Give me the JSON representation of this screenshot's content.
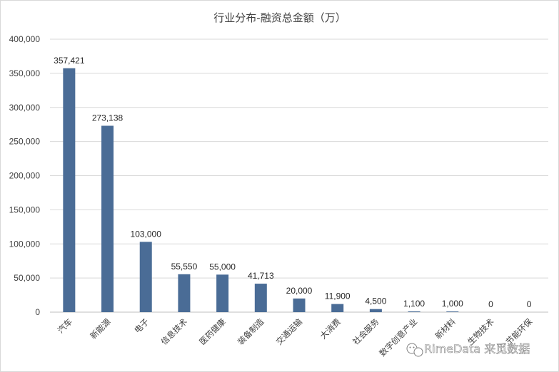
{
  "chart_data": {
    "type": "bar",
    "title": "行业分布-融资总金额（万）",
    "xlabel": "",
    "ylabel": "",
    "ylim": [
      0,
      400000
    ],
    "yticks": [
      0,
      50000,
      100000,
      150000,
      200000,
      250000,
      300000,
      350000,
      400000
    ],
    "ytick_labels": [
      "0",
      "50,000",
      "100,000",
      "150,000",
      "200,000",
      "250,000",
      "300,000",
      "350,000",
      "400,000"
    ],
    "grid": true,
    "legend": "none",
    "categories": [
      "汽车",
      "新能源",
      "电子",
      "信息技术",
      "医药健康",
      "装备制造",
      "交通运输",
      "大消费",
      "社会服务",
      "数字创意产业",
      "新材料",
      "生物技术",
      "节能环保"
    ],
    "values": [
      357421,
      273138,
      103000,
      55550,
      55000,
      41713,
      20000,
      11900,
      4500,
      1100,
      1000,
      0,
      0
    ],
    "data_labels": [
      "357,421",
      "273,138",
      "103,000",
      "55,550",
      "55,000",
      "41,713",
      "20,000",
      "11,900",
      "4,500",
      "1,100",
      "1,000",
      "0",
      "0"
    ],
    "bar_color": "#4a6c96"
  },
  "watermark": {
    "text": "RimeData 来觅数据",
    "icon": "wechat-icon"
  }
}
